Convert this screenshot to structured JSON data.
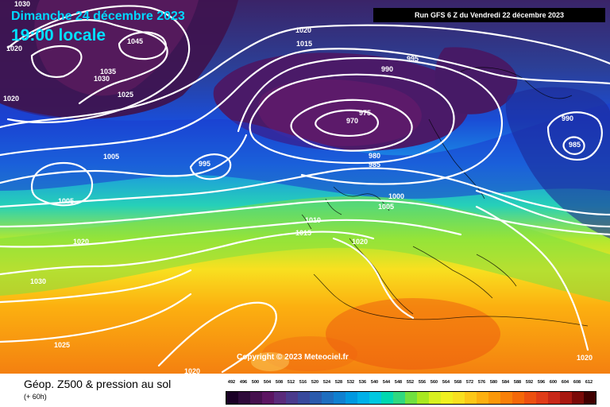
{
  "header": {
    "date_text": "Dimanche 24 décembre 2023",
    "time_text": "19:00 locale",
    "run_text": "Run GFS 6 Z du Vendredi 22 décembre 2023"
  },
  "map": {
    "copyright": "Copyright © 2023 Meteociel.fr",
    "isobar_labels": [
      "1030",
      "1020",
      "1045",
      "1035",
      "1030",
      "1025",
      "1020",
      "1020",
      "1015",
      "995",
      "990",
      "975",
      "970",
      "980",
      "985",
      "990",
      "985",
      "1005",
      "995",
      "1005",
      "1000",
      "1005",
      "1010",
      "1015",
      "1020",
      "1020",
      "1030",
      "1025",
      "1020",
      "1020"
    ]
  },
  "footer": {
    "title": "Géop. Z500 & pression au sol",
    "subtitle": "(+ 60h)"
  },
  "legend": {
    "labels": [
      "492",
      "496",
      "500",
      "504",
      "508",
      "512",
      "516",
      "520",
      "524",
      "528",
      "532",
      "536",
      "540",
      "544",
      "548",
      "552",
      "556",
      "560",
      "564",
      "568",
      "572",
      "576",
      "580",
      "584",
      "588",
      "592",
      "596",
      "600",
      "604",
      "608",
      "612"
    ],
    "colors": [
      "#1a0026",
      "#2e0a3a",
      "#46104e",
      "#5c1562",
      "#5a2a7a",
      "#4a3a8c",
      "#38499c",
      "#2a5aac",
      "#1e6ebf",
      "#1080d0",
      "#0098e0",
      "#00b0e8",
      "#00c8e0",
      "#00d8b0",
      "#30d880",
      "#70e040",
      "#a8e820",
      "#d8f020",
      "#f0f020",
      "#f8e020",
      "#fcc818",
      "#fcb010",
      "#fb9808",
      "#f88008",
      "#f46808",
      "#ec5010",
      "#e03c18",
      "#c82818",
      "#a81810",
      "#7a0a08",
      "#400000"
    ]
  }
}
